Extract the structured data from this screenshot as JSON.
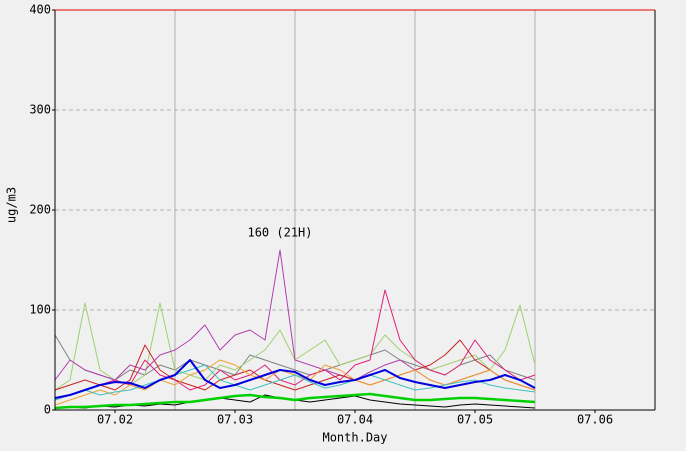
{
  "chart_data": {
    "type": "line",
    "xlabel": "Month.Day",
    "ylabel": "ug/m3",
    "xlim": [
      1.5,
      6.5
    ],
    "xticks": [
      {
        "value": 2,
        "label": "07.02"
      },
      {
        "value": 3,
        "label": "07.03"
      },
      {
        "value": 4,
        "label": "07.04"
      },
      {
        "value": 5,
        "label": "07.05"
      },
      {
        "value": 6,
        "label": "07.06"
      }
    ],
    "xgrid": [
      2.5,
      3.5,
      4.5,
      5.5
    ],
    "ylim": [
      0,
      400
    ],
    "yticks": [
      0,
      100,
      200,
      300,
      400
    ],
    "grid": true,
    "x": [
      1.5,
      1.625,
      1.75,
      1.875,
      2,
      2.125,
      2.25,
      2.375,
      2.5,
      2.625,
      2.75,
      2.875,
      3,
      3.125,
      3.25,
      3.375,
      3.5,
      3.625,
      3.75,
      3.875,
      4,
      4.125,
      4.25,
      4.375,
      4.5,
      4.625,
      4.75,
      4.875,
      5,
      5.125,
      5.25,
      5.375,
      5.5
    ],
    "series": [
      {
        "color": "#808080",
        "values": [
          75,
          50,
          40,
          35,
          30,
          40,
          35,
          45,
          40,
          50,
          45,
          40,
          35,
          55,
          50,
          45,
          40,
          35,
          40,
          45,
          50,
          55,
          60,
          50,
          45,
          40,
          35,
          45,
          50,
          55,
          40,
          35,
          30
        ]
      },
      {
        "color": "#a0d070",
        "values": [
          20,
          30,
          107,
          40,
          30,
          25,
          35,
          107,
          40,
          35,
          30,
          45,
          40,
          50,
          60,
          80,
          50,
          60,
          70,
          45,
          50,
          55,
          75,
          60,
          50,
          40,
          45,
          50,
          55,
          40,
          60,
          105,
          45
        ]
      },
      {
        "color": "#b040b0",
        "values": [
          30,
          50,
          40,
          35,
          30,
          45,
          40,
          55,
          60,
          70,
          85,
          60,
          75,
          80,
          70,
          160,
          50,
          45,
          40,
          35,
          30,
          38,
          45,
          50,
          40,
          30,
          25,
          30,
          35,
          40,
          30,
          25,
          20
        ]
      },
      {
        "color": "#e0207a",
        "values": [
          10,
          15,
          20,
          25,
          30,
          25,
          50,
          35,
          30,
          20,
          25,
          40,
          30,
          35,
          45,
          30,
          25,
          35,
          40,
          30,
          45,
          50,
          120,
          70,
          50,
          40,
          35,
          45,
          70,
          50,
          40,
          30,
          35
        ]
      },
      {
        "color": "#cc2020",
        "values": [
          20,
          25,
          30,
          25,
          20,
          30,
          65,
          40,
          30,
          25,
          20,
          30,
          35,
          40,
          30,
          25,
          20,
          25,
          30,
          35,
          30,
          25,
          30,
          35,
          40,
          45,
          55,
          70,
          50,
          40,
          30,
          25,
          20
        ]
      },
      {
        "color": "#f0a030",
        "values": [
          5,
          10,
          15,
          20,
          15,
          25,
          20,
          30,
          25,
          35,
          40,
          50,
          45,
          35,
          30,
          40,
          35,
          30,
          45,
          40,
          30,
          25,
          30,
          35,
          40,
          30,
          25,
          30,
          35,
          40,
          30,
          25,
          20
        ]
      },
      {
        "color": "#40c0c0",
        "values": [
          10,
          15,
          20,
          15,
          18,
          20,
          25,
          30,
          35,
          40,
          45,
          30,
          25,
          20,
          25,
          30,
          35,
          28,
          22,
          25,
          30,
          35,
          30,
          25,
          20,
          22,
          25,
          28,
          30,
          25,
          22,
          20,
          18
        ]
      },
      {
        "color": "#000000",
        "values": [
          2,
          3,
          2,
          4,
          3,
          5,
          4,
          6,
          5,
          8,
          10,
          12,
          10,
          8,
          15,
          12,
          10,
          8,
          10,
          12,
          14,
          10,
          8,
          6,
          5,
          4,
          3,
          5,
          6,
          5,
          4,
          3,
          2
        ]
      },
      {
        "color": "#0000e0",
        "width": 2,
        "values": [
          12,
          15,
          20,
          25,
          28,
          27,
          22,
          30,
          35,
          50,
          30,
          22,
          25,
          30,
          35,
          40,
          38,
          30,
          25,
          28,
          30,
          35,
          40,
          32,
          28,
          25,
          22,
          25,
          28,
          30,
          35,
          30,
          22
        ]
      },
      {
        "color": "#00d000",
        "width": 2.5,
        "values": [
          2,
          3,
          3,
          4,
          5,
          5,
          6,
          7,
          8,
          8,
          10,
          12,
          14,
          15,
          13,
          12,
          10,
          12,
          13,
          14,
          15,
          16,
          14,
          12,
          10,
          10,
          11,
          12,
          12,
          11,
          10,
          9,
          8
        ]
      }
    ],
    "annotation": {
      "text": "160 (21H)",
      "x": 3.375,
      "y": 160
    }
  }
}
